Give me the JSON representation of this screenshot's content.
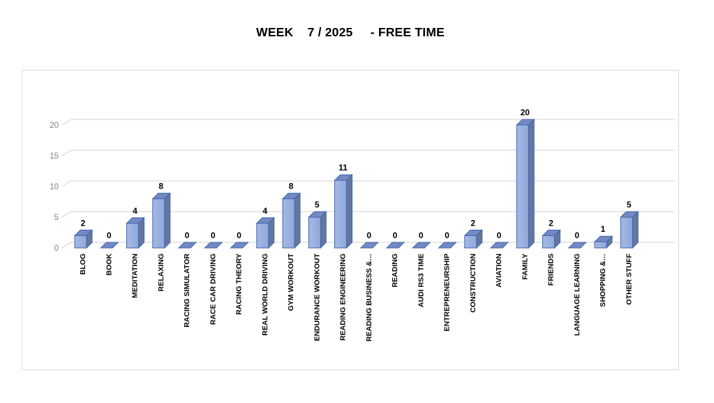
{
  "title": "WEEK    7 / 2025     - FREE TIME",
  "chart_data": {
    "type": "bar",
    "style": "3d-column",
    "title": "WEEK 7 / 2025 - FREE TIME",
    "categories": [
      "BLOG",
      "BOOK",
      "MEDITATION",
      "RELAXING",
      "RACING SIMULATOR",
      "RACE CAR DRIVING",
      "RACING THEORY",
      "REAL WORLD DRIVING",
      "GYM WORKOUT",
      "ENDURANCE WORKOUT",
      "READING ENGINEERING",
      "READING BUSINESS &…",
      "READING",
      "AUDI RS3 TIME",
      "ENTREPRENEURSHIP",
      "CONSTRUCTION",
      "AVIATION",
      "FAMILY",
      "FRIENDS",
      "LANGUAGE LEARNING",
      "SHOPPING &…",
      "OTHER STUFF"
    ],
    "values": [
      2,
      0,
      4,
      8,
      0,
      0,
      0,
      4,
      8,
      5,
      11,
      0,
      0,
      0,
      0,
      2,
      0,
      20,
      2,
      0,
      1,
      5
    ],
    "xlabel": "",
    "ylabel": "",
    "ylim": [
      0,
      20
    ],
    "yticks": [
      0,
      5,
      10,
      15,
      20
    ],
    "grid": true,
    "legend": false,
    "data_labels": true,
    "colors": {
      "bar_front_light": "#A6B9E4",
      "bar_front": "#8FA8DA",
      "bar_side": "#65779E",
      "bar_top": "#7289C2",
      "bar_outline": "#4166AE",
      "gridline": "#D9D9D9",
      "tick_label": "#7F7F7F",
      "data_label": "#000000",
      "category_label": "#000000",
      "chart_border": "#D9D9D9"
    }
  }
}
